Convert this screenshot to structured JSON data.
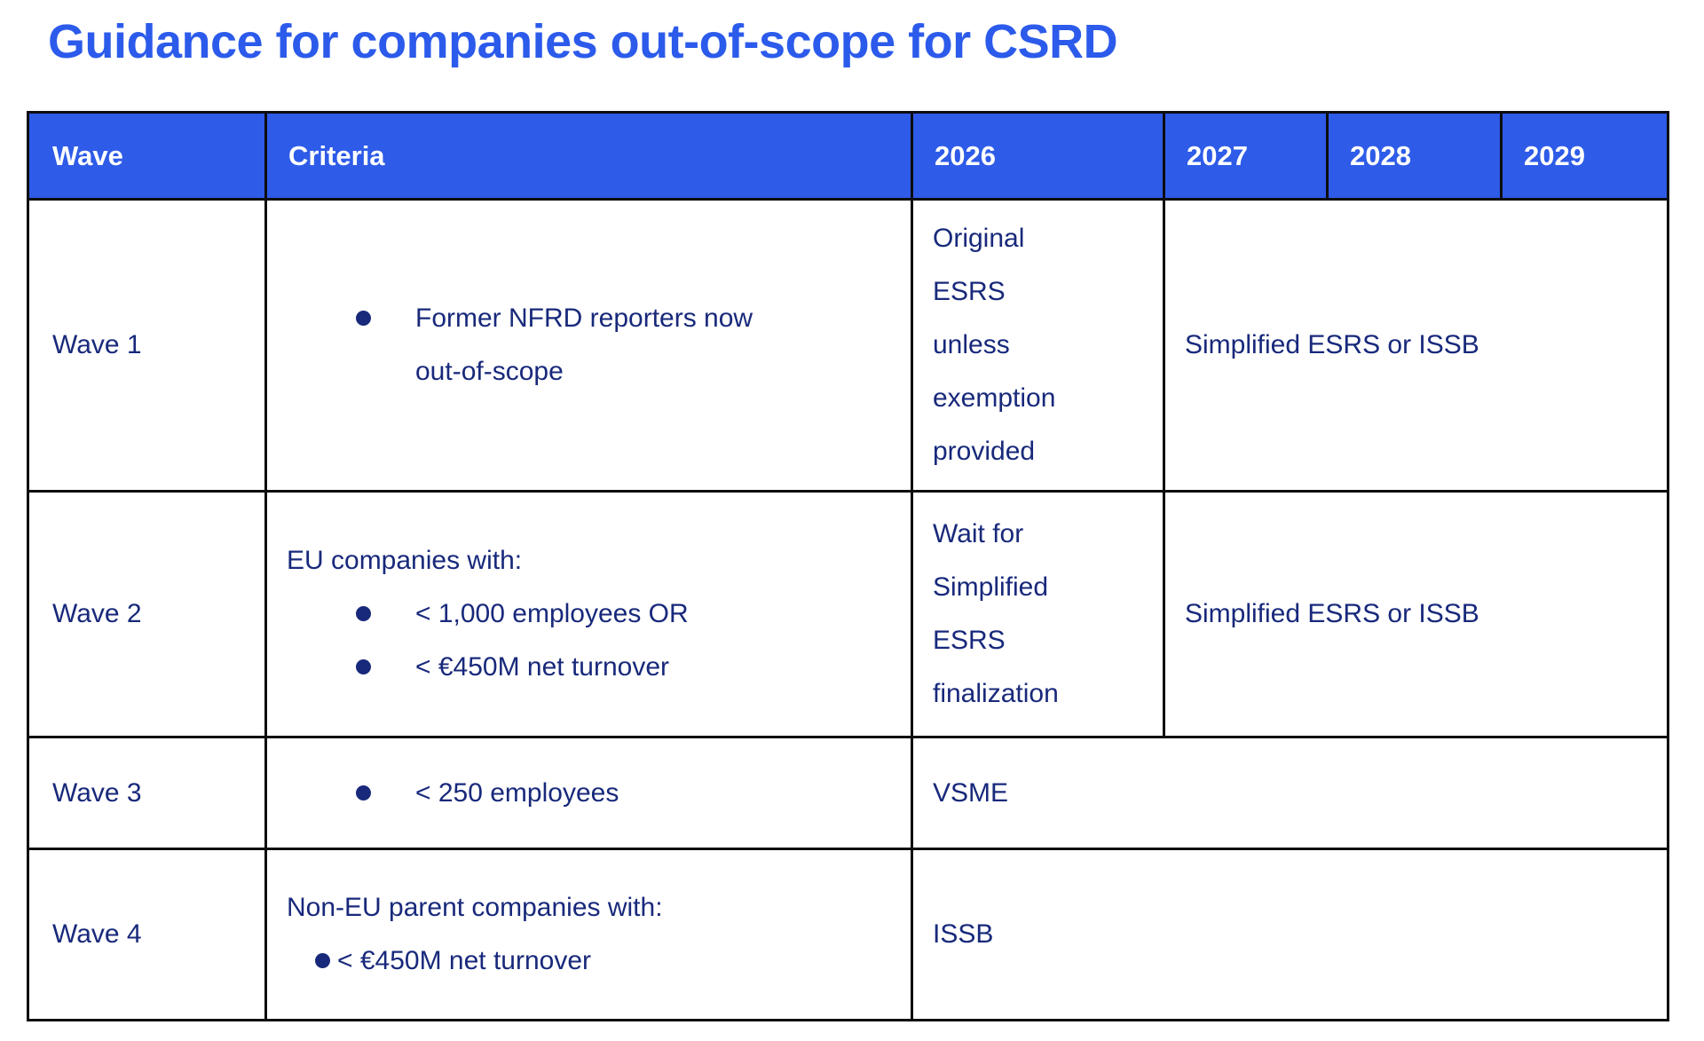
{
  "title": "Guidance for companies out-of-scope for CSRD",
  "colors": {
    "title_blue": "#2C5BEB",
    "header_bg_blue": "#2E5BE8",
    "header_text": "#FFFFFF",
    "body_navy": "#18297B",
    "border_black": "#0D0D0D"
  },
  "table": {
    "headers": [
      "Wave",
      "Criteria",
      "2026",
      "2027",
      "2028",
      "2029"
    ],
    "rows": [
      {
        "wave": "Wave 1",
        "criteria": {
          "intro": "",
          "bullets": [
            "Former NFRD reporters now\nout-of-scope"
          ]
        },
        "col2026": "Original\nESRS\nunless\nexemption\nprovided",
        "col2027_2029": "Simplified ESRS or ISSB"
      },
      {
        "wave": "Wave 2",
        "criteria": {
          "intro": "EU companies with:",
          "bullets": [
            "< 1,000 employees OR",
            "< €450M net turnover"
          ]
        },
        "col2026": "Wait for\nSimplified\nESRS\nfinalization",
        "col2027_2029": "Simplified ESRS or ISSB"
      },
      {
        "wave": "Wave 3",
        "criteria": {
          "intro": "",
          "bullets": [
            "< 250 employees"
          ]
        },
        "col2026_2029": "VSME"
      },
      {
        "wave": "Wave 4",
        "criteria": {
          "intro": "Non-EU parent companies with:",
          "bullets": [
            "< €450M net turnover"
          ]
        },
        "col2026_2029": "ISSB"
      }
    ]
  }
}
